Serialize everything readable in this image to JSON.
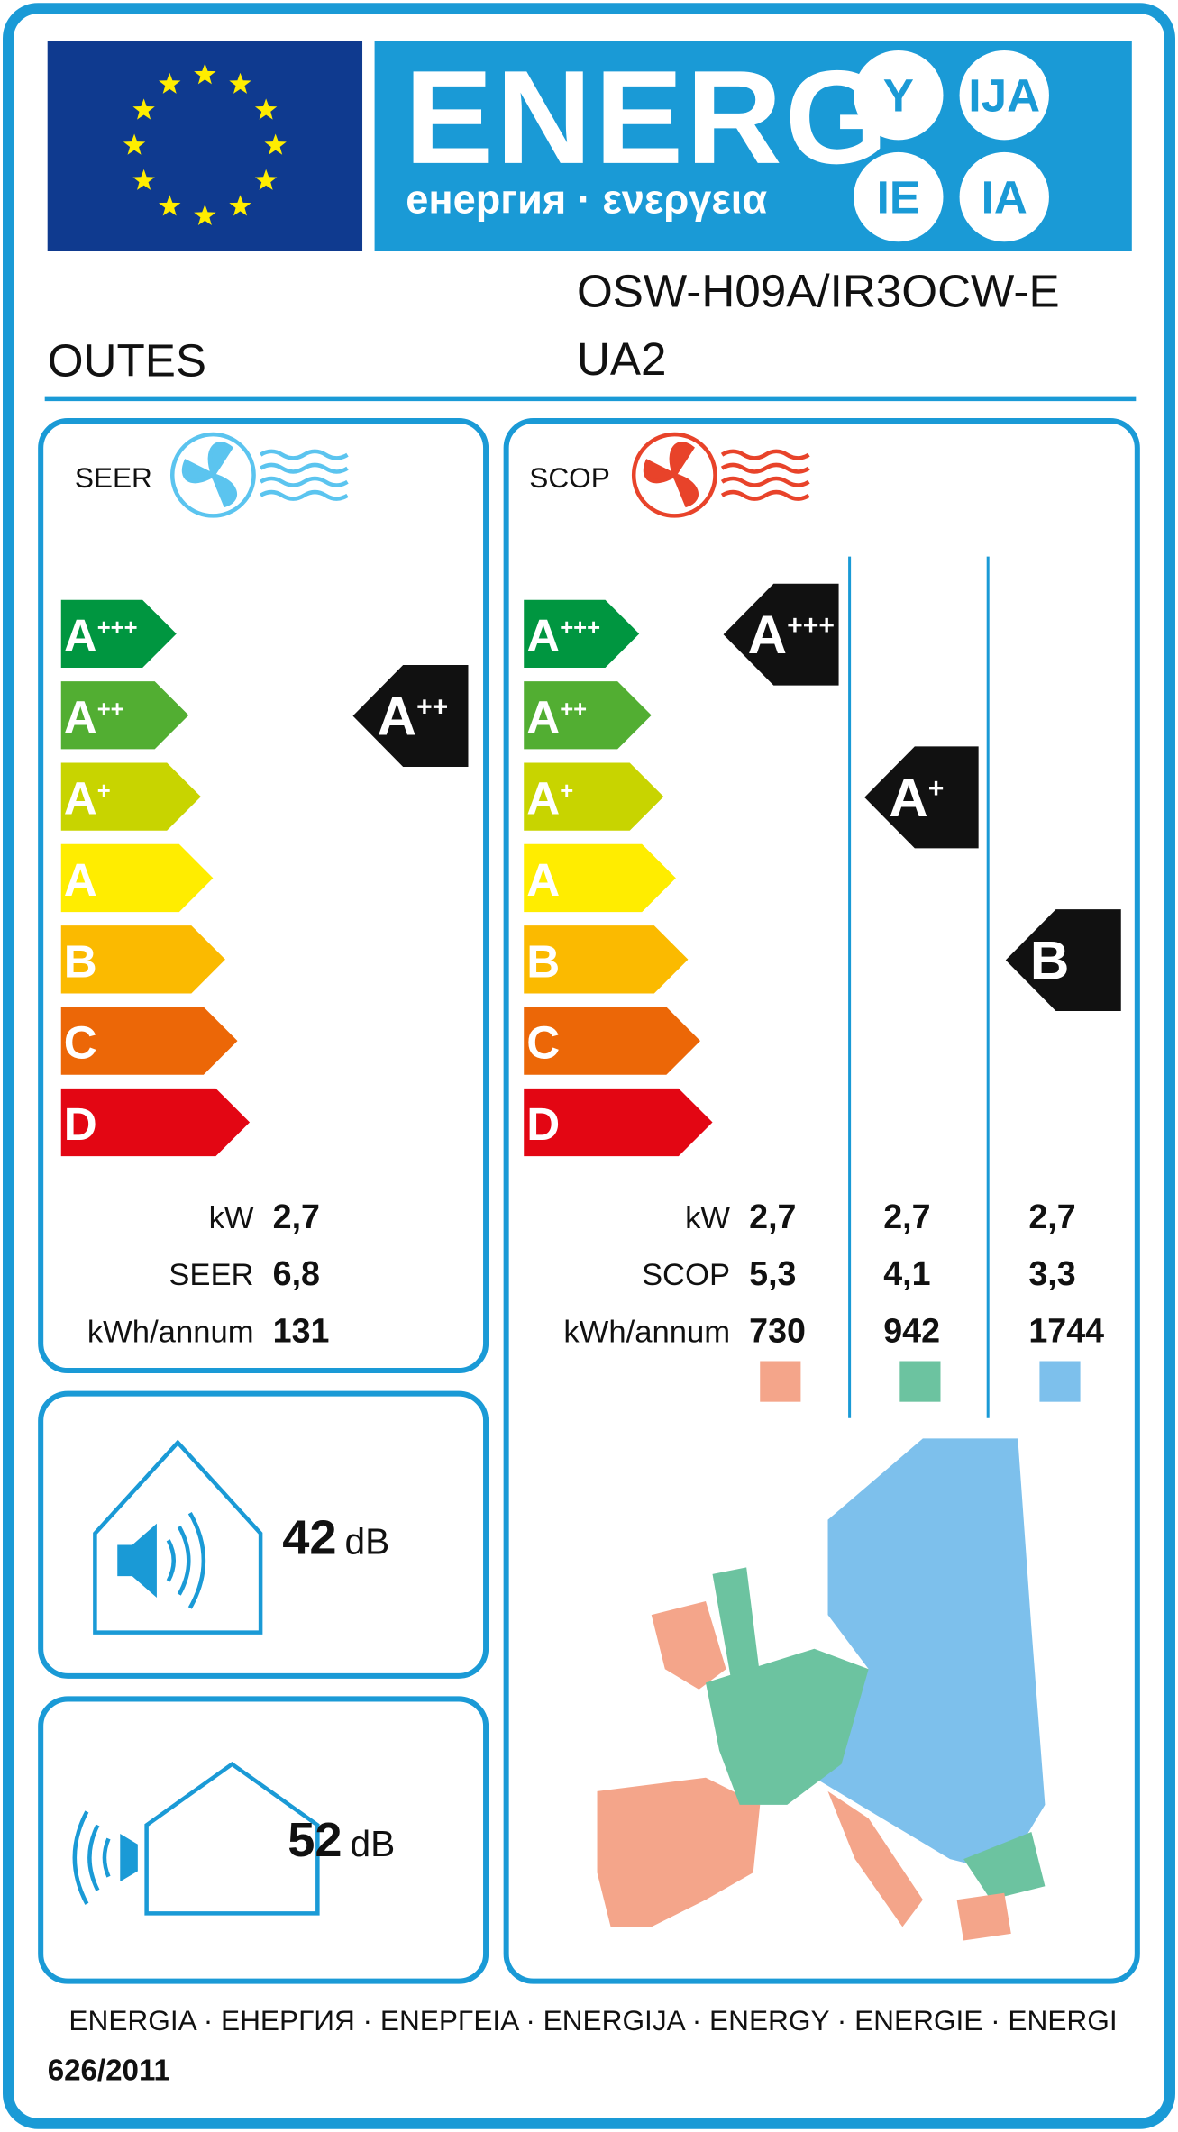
{
  "header": {
    "title": "ENERG",
    "subtitle": "енергия · ενεργεια",
    "suffixes": [
      "Y",
      "IJA",
      "IE",
      "IA"
    ]
  },
  "supplier": "OUTES",
  "model": [
    "OSW-H09A/IR3OCW-E",
    "UA2"
  ],
  "cooling": {
    "label": "SEER",
    "classes": [
      {
        "letter": "A",
        "plus": "+++",
        "color": "#009640"
      },
      {
        "letter": "A",
        "plus": "++",
        "color": "#52ae32"
      },
      {
        "letter": "A",
        "plus": "+",
        "color": "#c8d400"
      },
      {
        "letter": "A",
        "color": "#ffed00"
      },
      {
        "letter": "B",
        "color": "#fbba00"
      },
      {
        "letter": "C",
        "color": "#ec6707"
      },
      {
        "letter": "D",
        "color": "#e30613"
      }
    ],
    "rating": {
      "letter": "A",
      "plus": "++"
    },
    "rows": [
      {
        "label": "kW",
        "values": [
          "2,7"
        ]
      },
      {
        "label": "SEER",
        "values": [
          "6,8"
        ]
      },
      {
        "label": "kWh/annum",
        "values": [
          "131"
        ]
      }
    ]
  },
  "heating": {
    "label": "SCOP",
    "classes": [
      {
        "letter": "A",
        "plus": "+++",
        "color": "#009640"
      },
      {
        "letter": "A",
        "plus": "++",
        "color": "#52ae32"
      },
      {
        "letter": "A",
        "plus": "+",
        "color": "#c8d400"
      },
      {
        "letter": "A",
        "color": "#ffed00"
      },
      {
        "letter": "B",
        "color": "#fbba00"
      },
      {
        "letter": "C",
        "color": "#ec6707"
      },
      {
        "letter": "D",
        "color": "#e30613"
      }
    ],
    "ratings": [
      {
        "letter": "A",
        "plus": "+++"
      },
      {
        "letter": "A",
        "plus": "+"
      },
      {
        "letter": "B"
      }
    ],
    "rows": [
      {
        "label": "kW",
        "values": [
          "2,7",
          "2,7",
          "2,7"
        ]
      },
      {
        "label": "SCOP",
        "values": [
          "5,3",
          "4,1",
          "3,3"
        ]
      },
      {
        "label": "kWh/annum",
        "values": [
          "730",
          "942",
          "1744"
        ]
      }
    ],
    "zone_colors": [
      "#f4a58a",
      "#6cc3a0",
      "#7dc0ec"
    ]
  },
  "noise": [
    {
      "value": "42",
      "unit": "dB"
    },
    {
      "value": "52",
      "unit": "dB"
    }
  ],
  "footer": {
    "languages": "ENERGIA · ЕНЕРГИЯ · ΕΝΕΡΓΕΙΑ · ENERGIJA · ENERGY · ENERGIE · ENERGI",
    "regulation": "626/2011"
  }
}
